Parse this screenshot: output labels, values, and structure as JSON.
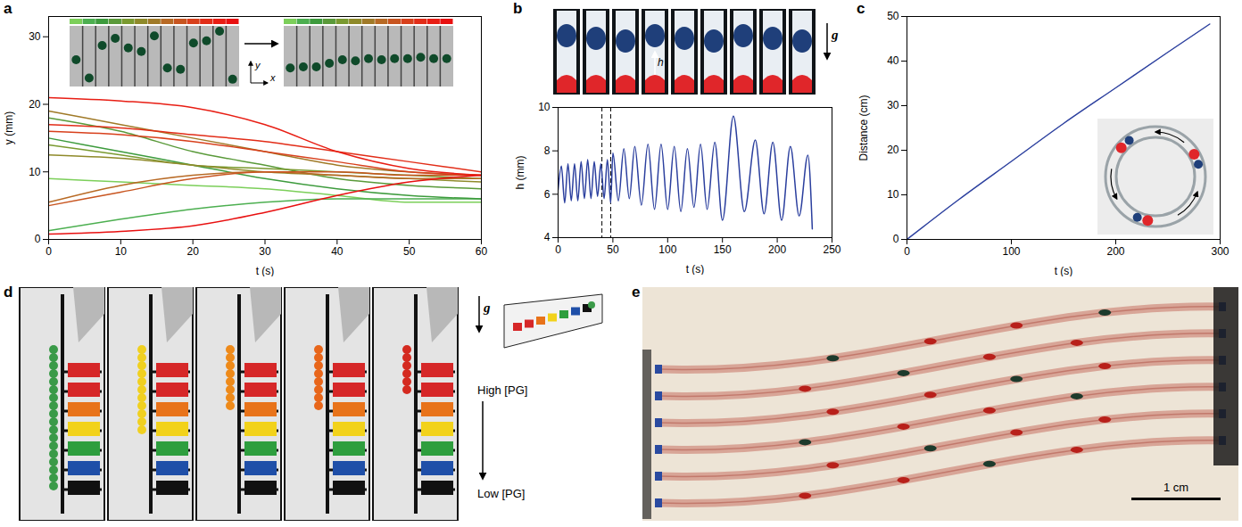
{
  "chart_data": [
    {
      "panel_label": "a",
      "type": "line",
      "xlabel": "t (s)",
      "ylabel": "y (mm)",
      "x": [
        0,
        10,
        20,
        30,
        40,
        50,
        60
      ],
      "xlim": [
        0,
        60
      ],
      "xticks": [
        0,
        10,
        20,
        30,
        40,
        50,
        60
      ],
      "ylim": [
        0,
        33
      ],
      "yticks": [
        0,
        10,
        20,
        30
      ],
      "inset_axis_labels": [
        "y",
        "x"
      ],
      "series": [
        {
          "color": "#7ccf5a",
          "values": [
            9,
            8.5,
            8,
            7.5,
            6.5,
            5.5,
            5.5
          ]
        },
        {
          "color": "#4caf50",
          "values": [
            1.3,
            3,
            4.5,
            5.5,
            6,
            6,
            6
          ]
        },
        {
          "color": "#3d9b3d",
          "values": [
            15,
            13,
            11,
            9,
            7.5,
            6.5,
            6
          ]
        },
        {
          "color": "#5a9a3a",
          "values": [
            18,
            16,
            13,
            11,
            9,
            8,
            7.5
          ]
        },
        {
          "color": "#7a9a30",
          "values": [
            14,
            12.5,
            11,
            10.5,
            10,
            9.5,
            9
          ]
        },
        {
          "color": "#8f8a2a",
          "values": [
            12.5,
            12,
            11,
            10,
            9.5,
            9,
            8.5
          ]
        },
        {
          "color": "#a07a28",
          "values": [
            19,
            17,
            15,
            13,
            11,
            10,
            9.5
          ]
        },
        {
          "color": "#b86a25",
          "values": [
            5.5,
            8,
            9.5,
            10,
            9.5,
            9,
            9
          ]
        },
        {
          "color": "#c85520",
          "values": [
            5,
            7,
            9,
            10,
            10,
            9.5,
            9.5
          ]
        },
        {
          "color": "#d8401c",
          "values": [
            16,
            15.5,
            14.5,
            13,
            11.5,
            10,
            9.5
          ]
        },
        {
          "color": "#e22d18",
          "values": [
            17,
            16.5,
            15.5,
            14.5,
            13,
            11.5,
            10
          ]
        },
        {
          "color": "#e81e14",
          "values": [
            21,
            20.5,
            19.5,
            17,
            13,
            10.5,
            9.5
          ]
        },
        {
          "color": "#e81010",
          "values": [
            0.8,
            1.2,
            2,
            4,
            6.5,
            8.5,
            9.5
          ]
        }
      ]
    },
    {
      "panel_label": "b",
      "type": "line",
      "xlabel": "t (s)",
      "ylabel": "h (mm)",
      "frame_label": "h",
      "gravity_label": "g",
      "color": "#2b3f9e",
      "x": [
        0,
        3,
        6,
        9,
        12,
        15,
        18,
        21,
        24,
        27,
        30,
        33,
        36,
        39,
        42,
        45,
        48,
        50,
        55,
        60,
        65,
        70,
        76,
        82,
        88,
        94,
        100,
        106,
        112,
        118,
        124,
        130,
        136,
        143,
        150,
        160,
        170,
        180,
        188,
        196,
        204,
        212,
        220,
        228,
        232
      ],
      "values": [
        6.2,
        7.3,
        5.6,
        7.4,
        5.7,
        7.4,
        5.7,
        7.5,
        5.8,
        7.6,
        5.8,
        7.5,
        5.9,
        7.4,
        5.8,
        7.6,
        5.6,
        7.9,
        5.7,
        8.1,
        5.8,
        8.2,
        5.5,
        8.3,
        5.3,
        8.3,
        5.3,
        8.2,
        5.2,
        8.1,
        5.4,
        8.3,
        5.3,
        8.4,
        4.8,
        9.6,
        5.2,
        8.5,
        5.1,
        8.4,
        4.8,
        8.2,
        5.0,
        7.8,
        4.4
      ],
      "highlight_t": [
        40,
        48
      ],
      "xlim": [
        0,
        250
      ],
      "xticks": [
        0,
        50,
        100,
        150,
        200,
        250
      ],
      "ylim": [
        4,
        10
      ],
      "yticks": [
        4,
        6,
        8,
        10
      ]
    },
    {
      "panel_label": "c",
      "type": "line",
      "xlabel": "t (s)",
      "ylabel": "Distance (cm)",
      "color": "#2b3f9e",
      "x": [
        0,
        50,
        100,
        150,
        200,
        250,
        290
      ],
      "values": [
        0,
        9,
        17.5,
        26,
        34,
        42,
        48.3
      ],
      "xlim": [
        0,
        300
      ],
      "xticks": [
        0,
        100,
        200,
        300
      ],
      "ylim": [
        0,
        50
      ],
      "yticks": [
        0,
        10,
        20,
        30,
        40,
        50
      ]
    }
  ],
  "photos": {
    "d": {
      "panel_label": "d",
      "reservoir_colors": [
        "#d62728",
        "#d62728",
        "#e8731a",
        "#f2d21b",
        "#2e9e3e",
        "#1f4fa8",
        "#111111"
      ],
      "frames": [
        {
          "droplet_color": "#3a9a48",
          "depth": 6
        },
        {
          "droplet_color": "#f0d020",
          "depth": 3
        },
        {
          "droplet_color": "#ee8a1a",
          "depth": 2
        },
        {
          "droplet_color": "#e8661a",
          "depth": 2
        },
        {
          "droplet_color": "#d42a20",
          "depth": 1
        }
      ],
      "gravity_label": "g",
      "gradient_labels": [
        "High [PG]",
        "Low [PG]"
      ]
    },
    "e": {
      "panel_label": "e",
      "channels": 6,
      "scale_bar_label": "1 cm"
    }
  }
}
